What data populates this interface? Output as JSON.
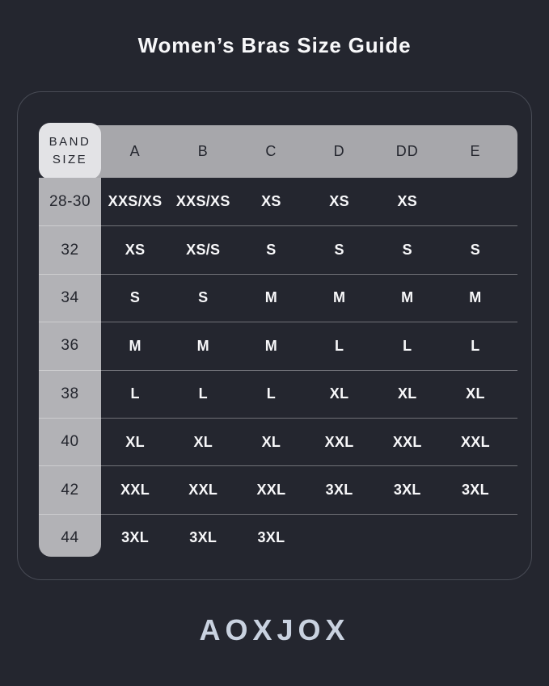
{
  "title": "Women’s Bras Size Guide",
  "table": {
    "corner_header": "BAND\nSIZE",
    "cup_columns": [
      "A",
      "B",
      "C",
      "D",
      "DD",
      "E"
    ],
    "rows": [
      {
        "band": "28-30",
        "cells": [
          "XXS/XS",
          "XXS/XS",
          "XS",
          "XS",
          "XS",
          ""
        ]
      },
      {
        "band": "32",
        "cells": [
          "XS",
          "XS/S",
          "S",
          "S",
          "S",
          "S"
        ]
      },
      {
        "band": "34",
        "cells": [
          "S",
          "S",
          "M",
          "M",
          "M",
          "M"
        ]
      },
      {
        "band": "36",
        "cells": [
          "M",
          "M",
          "M",
          "L",
          "L",
          "L"
        ]
      },
      {
        "band": "38",
        "cells": [
          "L",
          "L",
          "L",
          "XL",
          "XL",
          "XL"
        ]
      },
      {
        "band": "40",
        "cells": [
          "XL",
          "XL",
          "XL",
          "XXL",
          "XXL",
          "XXL"
        ]
      },
      {
        "band": "42",
        "cells": [
          "XXL",
          "XXL",
          "XXL",
          "3XL",
          "3XL",
          "3XL"
        ]
      },
      {
        "band": "44",
        "cells": [
          "3XL",
          "3XL",
          "3XL",
          "",
          "",
          ""
        ]
      }
    ]
  },
  "brand": {
    "logo_text": "AOXJOX"
  },
  "colors": {
    "page_bg": "#24262F",
    "card_border": "#484B55",
    "header_bar": "#A7A7AB",
    "corner_cell": "#E3E3E6",
    "band_column": "#B2B2B6",
    "separator": "rgba(255,255,255,0.35)",
    "text_dark": "#24262E",
    "text_light": "#F8F8FA",
    "logo_color": "#C9D2E0"
  }
}
